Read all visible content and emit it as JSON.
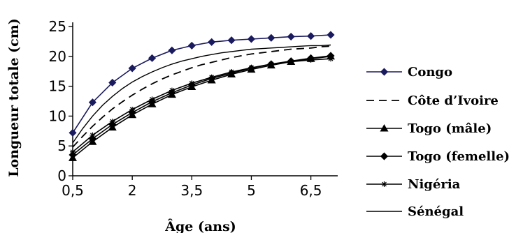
{
  "chart_data": {
    "type": "line",
    "xlabel": "Âge (ans)",
    "ylabel": "Longueur totale (cm)",
    "xlim": [
      0.5,
      7
    ],
    "ylim": [
      0,
      25
    ],
    "x_ticks": [
      "0,5",
      "2",
      "3,5",
      "5",
      "6,5"
    ],
    "y_ticks": [
      "0",
      "5",
      "10",
      "15",
      "20",
      "25"
    ],
    "grid": false,
    "legend_position": "right",
    "series": [
      {
        "name": "Congo",
        "style": "solid-diamond",
        "color": "#1a1a5e",
        "x": [
          0.5,
          1,
          1.5,
          2,
          2.5,
          3,
          3.5,
          4,
          4.5,
          5,
          5.5,
          6,
          6.5,
          7
        ],
        "values": [
          7.2,
          12.3,
          15.6,
          18.0,
          19.7,
          21.0,
          21.8,
          22.4,
          22.7,
          22.9,
          23.1,
          23.3,
          23.4,
          23.6
        ]
      },
      {
        "name": "Côte d’Ivoire",
        "style": "dashed",
        "color": "#000000",
        "x": [
          0.5,
          0.75,
          1,
          1.25,
          1.5,
          1.75,
          2,
          2.25,
          2.5,
          2.75,
          3,
          3.25,
          3.5,
          3.75,
          4,
          4.25,
          4.5,
          4.75,
          5,
          5.25,
          5.5,
          5.75,
          6,
          6.25,
          6.5,
          6.75,
          7
        ],
        "values": [
          4.8,
          6.6,
          8.3,
          9.8,
          11.2,
          12.4,
          13.5,
          14.5,
          15.4,
          16.2,
          16.9,
          17.5,
          18.1,
          18.6,
          19.0,
          19.4,
          19.8,
          20.1,
          20.4,
          20.6,
          20.8,
          21.0,
          21.2,
          21.3,
          21.4,
          21.6,
          21.7
        ]
      },
      {
        "name": "Togo (mâle)",
        "style": "solid-triangle",
        "color": "#000000",
        "x": [
          0.5,
          1,
          1.5,
          2,
          2.5,
          3,
          3.5,
          4,
          4.5,
          5,
          5.5,
          6,
          6.5,
          7
        ],
        "values": [
          3.0,
          5.7,
          8.1,
          10.2,
          12.0,
          13.6,
          14.9,
          16.0,
          17.0,
          17.8,
          18.5,
          19.1,
          19.6,
          20.0
        ]
      },
      {
        "name": "Togo (femelle)",
        "style": "solid-diamond",
        "color": "#000000",
        "x": [
          0.5,
          1,
          1.5,
          2,
          2.5,
          3,
          3.5,
          4,
          4.5,
          5,
          5.5,
          6,
          6.5,
          7
        ],
        "values": [
          3.5,
          6.2,
          8.6,
          10.6,
          12.4,
          13.9,
          15.2,
          16.3,
          17.2,
          18.0,
          18.7,
          19.2,
          19.7,
          20.1
        ]
      },
      {
        "name": "Nigéria",
        "style": "solid-star",
        "color": "#000000",
        "x": [
          0.5,
          1,
          1.5,
          2,
          2.5,
          3,
          3.5,
          4,
          4.5,
          5,
          5.5,
          6,
          6.5,
          7
        ],
        "values": [
          4.0,
          6.8,
          9.1,
          11.1,
          12.8,
          14.3,
          15.5,
          16.5,
          17.4,
          18.1,
          18.7,
          19.1,
          19.4,
          19.6
        ]
      },
      {
        "name": "Sénégal",
        "style": "solid-thin",
        "color": "#000000",
        "x": [
          0.5,
          0.75,
          1,
          1.25,
          1.5,
          1.75,
          2,
          2.25,
          2.5,
          2.75,
          3,
          3.25,
          3.5,
          3.75,
          4,
          4.25,
          4.5,
          4.75,
          5,
          5.25,
          5.5,
          5.75,
          6,
          6.25,
          6.5,
          6.75,
          7
        ],
        "values": [
          5.5,
          7.9,
          10.0,
          11.8,
          13.3,
          14.6,
          15.7,
          16.6,
          17.4,
          18.1,
          18.7,
          19.2,
          19.6,
          20.0,
          20.3,
          20.6,
          20.8,
          21.0,
          21.2,
          21.3,
          21.4,
          21.5,
          21.6,
          21.7,
          21.8,
          21.8,
          21.9
        ]
      }
    ]
  }
}
